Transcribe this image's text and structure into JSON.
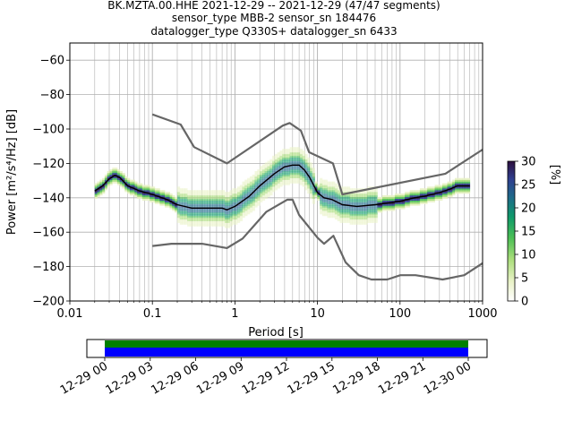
{
  "title_lines": [
    "BK.MZTA.00.HHE   2021-12-29 -- 2021-12-29  (47/47 segments)",
    "sensor_type MBB-2 sensor_sn 184476",
    "datalogger_type Q330S+ datalogger_sn 6433"
  ],
  "colors": {
    "noise_model": "#666666",
    "mode_line": "#000000",
    "coverage_a": "#008000",
    "coverage_b": "#0000ff",
    "grid": "#b0b0b0"
  },
  "chart_data": [
    {
      "type": "heatmap",
      "plot": "ppsd",
      "xlabel": "Period [s]",
      "ylabel": "Power [m²/s⁴/Hz] [dB]",
      "xscale": "log",
      "xlim": [
        0.01,
        1000
      ],
      "ylim": [
        -200,
        -50
      ],
      "grid": true,
      "x_ticks": [
        {
          "v": 0.01,
          "label": "0.01"
        },
        {
          "v": 0.1,
          "label": "0.1"
        },
        {
          "v": 1,
          "label": "1"
        },
        {
          "v": 10,
          "label": "10"
        },
        {
          "v": 100,
          "label": "100"
        },
        {
          "v": 1000,
          "label": "1000"
        }
      ],
      "y_ticks": [
        {
          "v": -60,
          "label": "−60"
        },
        {
          "v": -80,
          "label": "−80"
        },
        {
          "v": -100,
          "label": "−100"
        },
        {
          "v": -120,
          "label": "−120"
        },
        {
          "v": -140,
          "label": "−140"
        },
        {
          "v": -160,
          "label": "−160"
        },
        {
          "v": -180,
          "label": "−180"
        },
        {
          "v": -200,
          "label": "−200"
        }
      ],
      "colorbar": {
        "label": "[%]",
        "range": [
          0,
          30
        ],
        "ticks": [
          "0",
          "5",
          "10",
          "15",
          "20",
          "25",
          "30"
        ],
        "colors": [
          "#ffffff",
          "#e9f2c7",
          "#a9dd7a",
          "#4cbf55",
          "#0f9a6a",
          "#1e6b8a",
          "#2f3f8f",
          "#2d0f3e"
        ]
      },
      "series": [
        {
          "role": "noise-high",
          "x": [
            0.1,
            0.22,
            0.32,
            0.8,
            3.8,
            4.6,
            6.3,
            7.9,
            15.4,
            20,
            354.8,
            1000
          ],
          "y": [
            -91.5,
            -97.4,
            -110.5,
            -120,
            -98,
            -96.5,
            -101,
            -113.5,
            -120,
            -138,
            -126,
            -112
          ]
        },
        {
          "role": "noise-low",
          "x": [
            0.1,
            0.17,
            0.4,
            0.8,
            1.24,
            2.4,
            4.3,
            5,
            6,
            10,
            12,
            15.6,
            21.9,
            31.6,
            45,
            70,
            101,
            154,
            328,
            600,
            1000
          ],
          "y": [
            -168,
            -166.7,
            -166.7,
            -169.2,
            -163.7,
            -148.1,
            -141.1,
            -141.1,
            -150,
            -163.2,
            -166.7,
            -162.1,
            -177.5,
            -185,
            -187.5,
            -187.5,
            -185,
            -185,
            -187.5,
            -185,
            -178
          ]
        },
        {
          "role": "mode",
          "x": [
            0.02,
            0.025,
            0.03,
            0.035,
            0.04,
            0.05,
            0.07,
            0.1,
            0.15,
            0.2,
            0.3,
            0.5,
            0.7,
            0.8,
            1,
            1.5,
            2,
            3,
            4,
            5,
            6,
            7,
            8,
            10,
            12,
            15,
            20,
            30,
            50,
            70,
            100,
            150,
            200,
            300,
            400,
            500,
            700
          ],
          "y": [
            -136,
            -133,
            -129,
            -127,
            -128,
            -133,
            -136,
            -138,
            -141,
            -144,
            -146,
            -146,
            -146,
            -147,
            -145,
            -139,
            -133,
            -126,
            -122,
            -121,
            -121,
            -124,
            -128,
            -137,
            -140,
            -141,
            -144,
            -145,
            -144,
            -143,
            -142,
            -140,
            -139,
            -137,
            -135,
            -133,
            -133
          ]
        }
      ]
    },
    {
      "type": "bar",
      "plot": "data-coverage",
      "x_ticks": [
        "12-29 00",
        "12-29 03",
        "12-29 06",
        "12-29 09",
        "12-29 12",
        "12-29 15",
        "12-29 18",
        "12-29 21",
        "12-30 00"
      ],
      "start": "12-29 00",
      "end": "12-30 00"
    }
  ]
}
